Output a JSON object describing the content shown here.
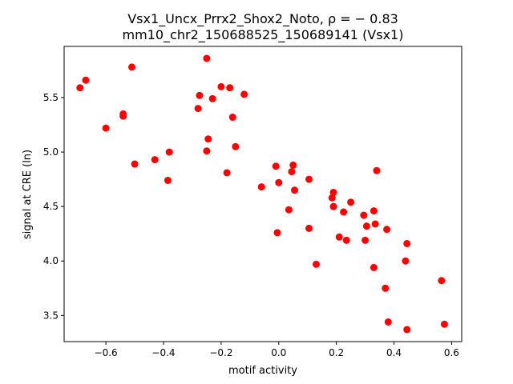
{
  "chart_data": {
    "type": "scatter",
    "title_line1": "Vsx1_Uncx_Prrx2_Shox2_Noto, ρ = − 0.83",
    "title_line2": "mm10_chr2_150688525_150689141 (Vsx1)",
    "xlabel": "motif activity",
    "ylabel": "signal at CRE (ln)",
    "xlim": [
      -0.745,
      0.635
    ],
    "ylim": [
      3.26,
      5.97
    ],
    "xticks": [
      -0.6,
      -0.4,
      -0.2,
      0.0,
      0.2,
      0.4,
      0.6
    ],
    "xtick_labels": [
      "−0.6",
      "−0.4",
      "−0.2",
      "0.0",
      "0.2",
      "0.4",
      "0.6"
    ],
    "yticks": [
      3.5,
      4.0,
      4.5,
      5.0,
      5.5
    ],
    "ytick_labels": [
      "3.5",
      "4.0",
      "4.5",
      "5.0",
      "5.5"
    ],
    "grid": false,
    "marker_color": "#ff0000",
    "points": [
      {
        "x": -0.69,
        "y": 5.59
      },
      {
        "x": -0.67,
        "y": 5.66
      },
      {
        "x": -0.6,
        "y": 5.22
      },
      {
        "x": -0.54,
        "y": 5.33
      },
      {
        "x": -0.54,
        "y": 5.35
      },
      {
        "x": -0.51,
        "y": 5.78
      },
      {
        "x": -0.5,
        "y": 4.89
      },
      {
        "x": -0.43,
        "y": 4.93
      },
      {
        "x": -0.38,
        "y": 5.0
      },
      {
        "x": -0.385,
        "y": 4.74
      },
      {
        "x": -0.28,
        "y": 5.4
      },
      {
        "x": -0.275,
        "y": 5.52
      },
      {
        "x": -0.25,
        "y": 5.86
      },
      {
        "x": -0.245,
        "y": 5.12
      },
      {
        "x": -0.25,
        "y": 5.01
      },
      {
        "x": -0.23,
        "y": 5.49
      },
      {
        "x": -0.2,
        "y": 5.6
      },
      {
        "x": -0.17,
        "y": 5.59
      },
      {
        "x": -0.16,
        "y": 5.32
      },
      {
        "x": -0.12,
        "y": 5.53
      },
      {
        "x": -0.15,
        "y": 5.05
      },
      {
        "x": -0.18,
        "y": 4.81
      },
      {
        "x": -0.06,
        "y": 4.68
      },
      {
        "x": -0.01,
        "y": 4.87
      },
      {
        "x": 0.0,
        "y": 4.72
      },
      {
        "x": -0.005,
        "y": 4.26
      },
      {
        "x": 0.035,
        "y": 4.47
      },
      {
        "x": 0.045,
        "y": 4.82
      },
      {
        "x": 0.05,
        "y": 4.88
      },
      {
        "x": 0.055,
        "y": 4.65
      },
      {
        "x": 0.105,
        "y": 4.75
      },
      {
        "x": 0.105,
        "y": 4.3
      },
      {
        "x": 0.13,
        "y": 3.97
      },
      {
        "x": 0.185,
        "y": 4.58
      },
      {
        "x": 0.19,
        "y": 4.63
      },
      {
        "x": 0.19,
        "y": 4.5
      },
      {
        "x": 0.21,
        "y": 4.22
      },
      {
        "x": 0.225,
        "y": 4.45
      },
      {
        "x": 0.235,
        "y": 4.19
      },
      {
        "x": 0.25,
        "y": 4.54
      },
      {
        "x": 0.295,
        "y": 4.42
      },
      {
        "x": 0.305,
        "y": 4.32
      },
      {
        "x": 0.3,
        "y": 4.19
      },
      {
        "x": 0.33,
        "y": 4.46
      },
      {
        "x": 0.335,
        "y": 4.34
      },
      {
        "x": 0.34,
        "y": 4.83
      },
      {
        "x": 0.33,
        "y": 3.94
      },
      {
        "x": 0.37,
        "y": 3.75
      },
      {
        "x": 0.375,
        "y": 4.29
      },
      {
        "x": 0.38,
        "y": 3.44
      },
      {
        "x": 0.445,
        "y": 4.16
      },
      {
        "x": 0.44,
        "y": 4.0
      },
      {
        "x": 0.445,
        "y": 3.37
      },
      {
        "x": 0.565,
        "y": 3.82
      },
      {
        "x": 0.575,
        "y": 3.42
      }
    ]
  }
}
